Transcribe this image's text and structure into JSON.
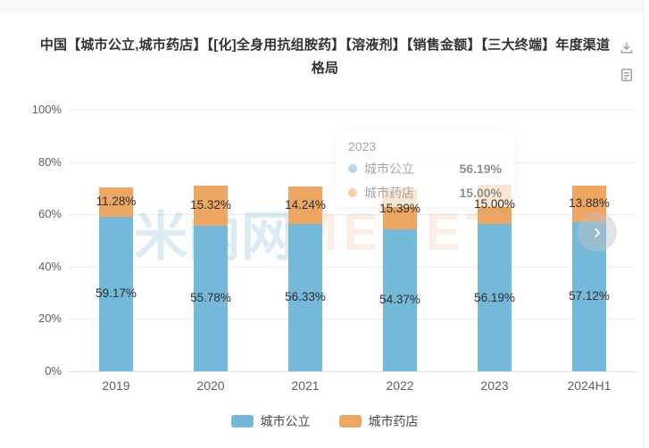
{
  "header": {
    "title": "中国【城市公立,城市药店】【[化]全身用抗组胺药】【溶液剂】【销售金额】【三大终端】年度渠道格局"
  },
  "toolbar": {
    "download_icon": "download-icon",
    "report_icon": "document-icon"
  },
  "chart_data": {
    "type": "bar",
    "stacked": true,
    "title": "中国【城市公立,城市药店】【[化]全身用抗组胺药】【溶液剂】【销售金额】【三大终端】年度渠道格局",
    "categories": [
      "2019",
      "2020",
      "2021",
      "2022",
      "2023",
      "2024H1"
    ],
    "series": [
      {
        "name": "城市公立",
        "color": "#74b9d9",
        "values": [
          59.17,
          55.78,
          56.33,
          54.37,
          56.19,
          57.12
        ]
      },
      {
        "name": "城市药店",
        "color": "#eda763",
        "values": [
          11.28,
          15.32,
          14.24,
          15.39,
          15.0,
          13.88
        ]
      }
    ],
    "xlabel": "",
    "ylabel": "",
    "ylim": [
      0,
      100
    ],
    "y_tick_labels": [
      "0%",
      "20%",
      "40%",
      "60%",
      "80%",
      "100%"
    ],
    "grid": true,
    "legend_position": "bottom",
    "value_label_format": "two-decimal-percent"
  },
  "tooltip": {
    "title": "2023",
    "rows": [
      {
        "label": "城市公立",
        "value": "56.19%",
        "color": "#74b9d9"
      },
      {
        "label": "城市药店",
        "value": "15.00%",
        "color": "#eda763"
      }
    ]
  },
  "watermark": {
    "text_cn": "米内网",
    "text_en": "MENET"
  },
  "carousel": {
    "next_icon": "›"
  },
  "colors": {
    "bar_blue": "#74b9d9",
    "bar_orange": "#eda763",
    "gridline": "#ececec",
    "axis_text": "#5f5f5f",
    "bar_label_text": "#2e2e2e",
    "title_text": "#333333",
    "icon_gray": "#9aa0a6"
  }
}
